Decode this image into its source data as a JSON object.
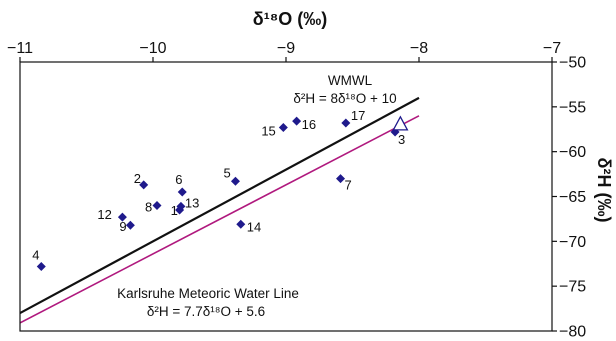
{
  "chart_data": {
    "type": "scatter",
    "xlabel": "δ¹⁸O (‰)",
    "ylabel": "δ²H (‰)",
    "xlim": [
      -11,
      -7
    ],
    "ylim": [
      -80,
      -50
    ],
    "x_ticks": [
      -11,
      -10,
      -9,
      -8,
      -7
    ],
    "y_ticks": [
      -50,
      -55,
      -60,
      -65,
      -70,
      -75,
      -80
    ],
    "x_axis_position": "top",
    "y_axis_position": "right",
    "grid": false,
    "legend": "none",
    "points": [
      {
        "label": "1",
        "x": -9.8,
        "y": -66.5
      },
      {
        "label": "2",
        "x": -10.07,
        "y": -63.7
      },
      {
        "label": "3",
        "x": -8.18,
        "y": -57.8
      },
      {
        "label": "4",
        "x": -10.84,
        "y": -72.8
      },
      {
        "label": "5",
        "x": -9.38,
        "y": -63.3
      },
      {
        "label": "6",
        "x": -9.78,
        "y": -64.5
      },
      {
        "label": "7",
        "x": -8.59,
        "y": -63.0
      },
      {
        "label": "8",
        "x": -9.97,
        "y": -66.0
      },
      {
        "label": "9",
        "x": -10.17,
        "y": -68.2
      },
      {
        "label": "12",
        "x": -10.23,
        "y": -67.3
      },
      {
        "label": "13",
        "x": -9.79,
        "y": -66.1
      },
      {
        "label": "14",
        "x": -9.34,
        "y": -68.1
      },
      {
        "label": "15",
        "x": -9.02,
        "y": -57.3
      },
      {
        "label": "16",
        "x": -8.92,
        "y": -56.6
      },
      {
        "label": "17",
        "x": -8.55,
        "y": -56.8
      }
    ],
    "open_marker": {
      "x": -8.14,
      "y": -56.9
    },
    "lines": [
      {
        "name": "WMWL",
        "equation": "δ²H = 8δ¹⁸O + 10",
        "slope": 8,
        "intercept": 10,
        "color": "#111111"
      },
      {
        "name": "Karlsruhe Meteoric Water Line",
        "equation": "δ²H = 7.7δ¹⁸O + 5.6",
        "slope": 7.7,
        "intercept": 5.6,
        "color": "#b0197e"
      }
    ],
    "colors": {
      "marker": "#1f1a8c",
      "open_marker": "#1f1a8c"
    }
  }
}
